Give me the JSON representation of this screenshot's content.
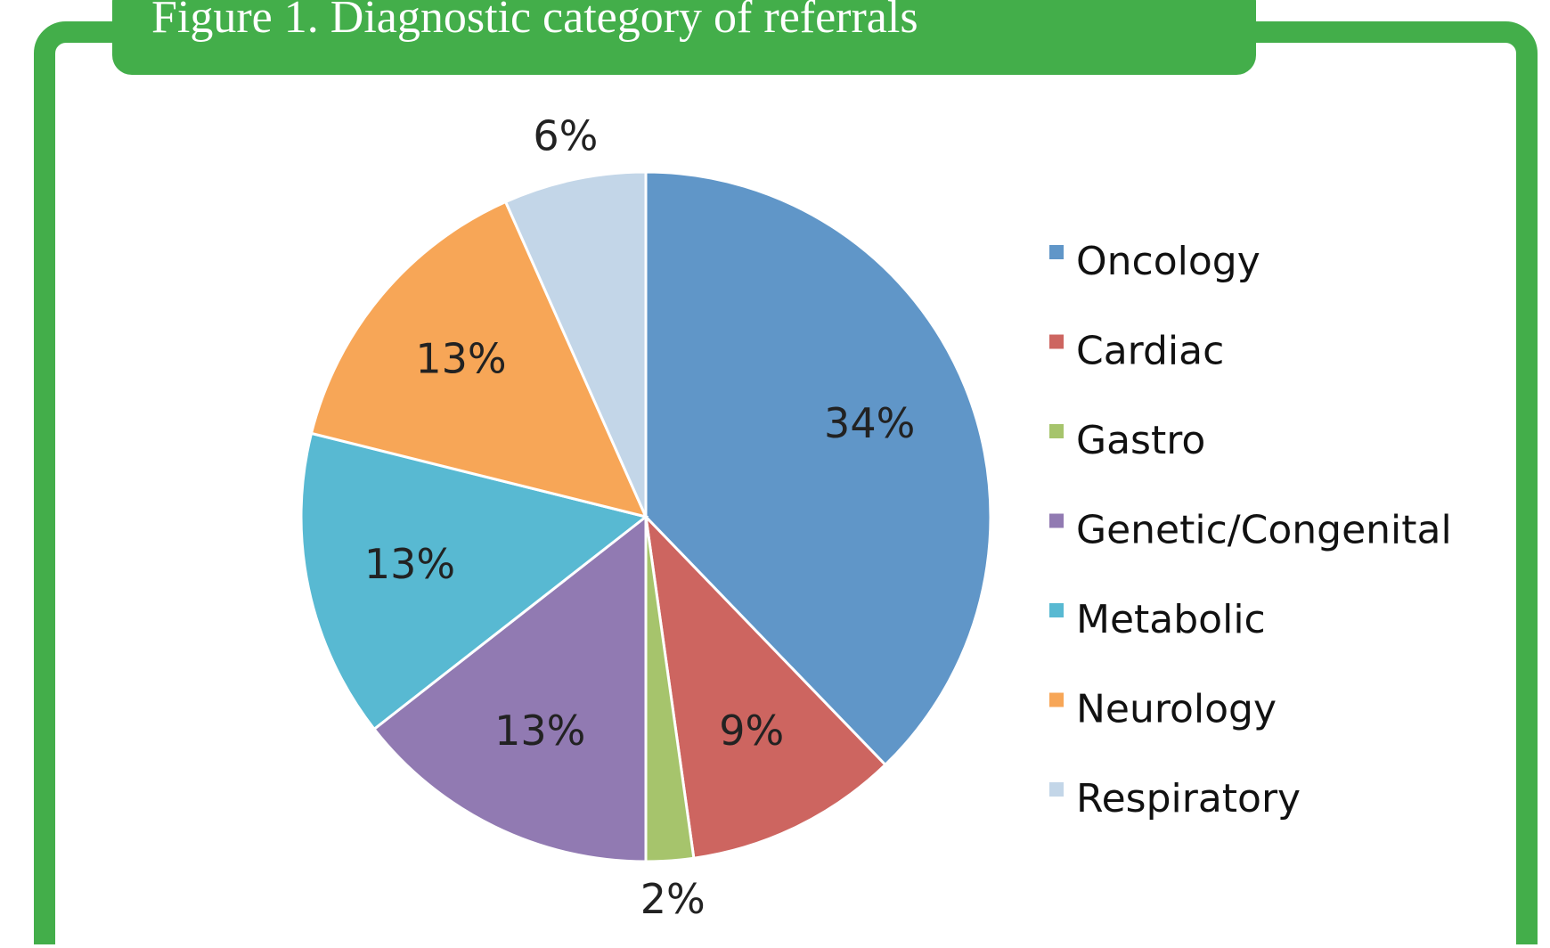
{
  "chart_data": {
    "type": "pie",
    "title": "Figure 1. Diagnostic category of referrals",
    "categories": [
      "Oncology",
      "Cardiac",
      "Gastro",
      "Genetic/Congenital",
      "Metabolic",
      "Neurology",
      "Respiratory"
    ],
    "values": [
      34,
      9,
      2,
      13,
      13,
      13,
      6
    ],
    "value_labels": [
      "34%",
      "9%",
      "2%",
      "13%",
      "13%",
      "13%",
      "6%"
    ],
    "colors": [
      "#6096c8",
      "#cd6560",
      "#a6c46c",
      "#917ab2",
      "#58b9d2",
      "#f7a657",
      "#c3d6e8"
    ],
    "legend": "right"
  }
}
